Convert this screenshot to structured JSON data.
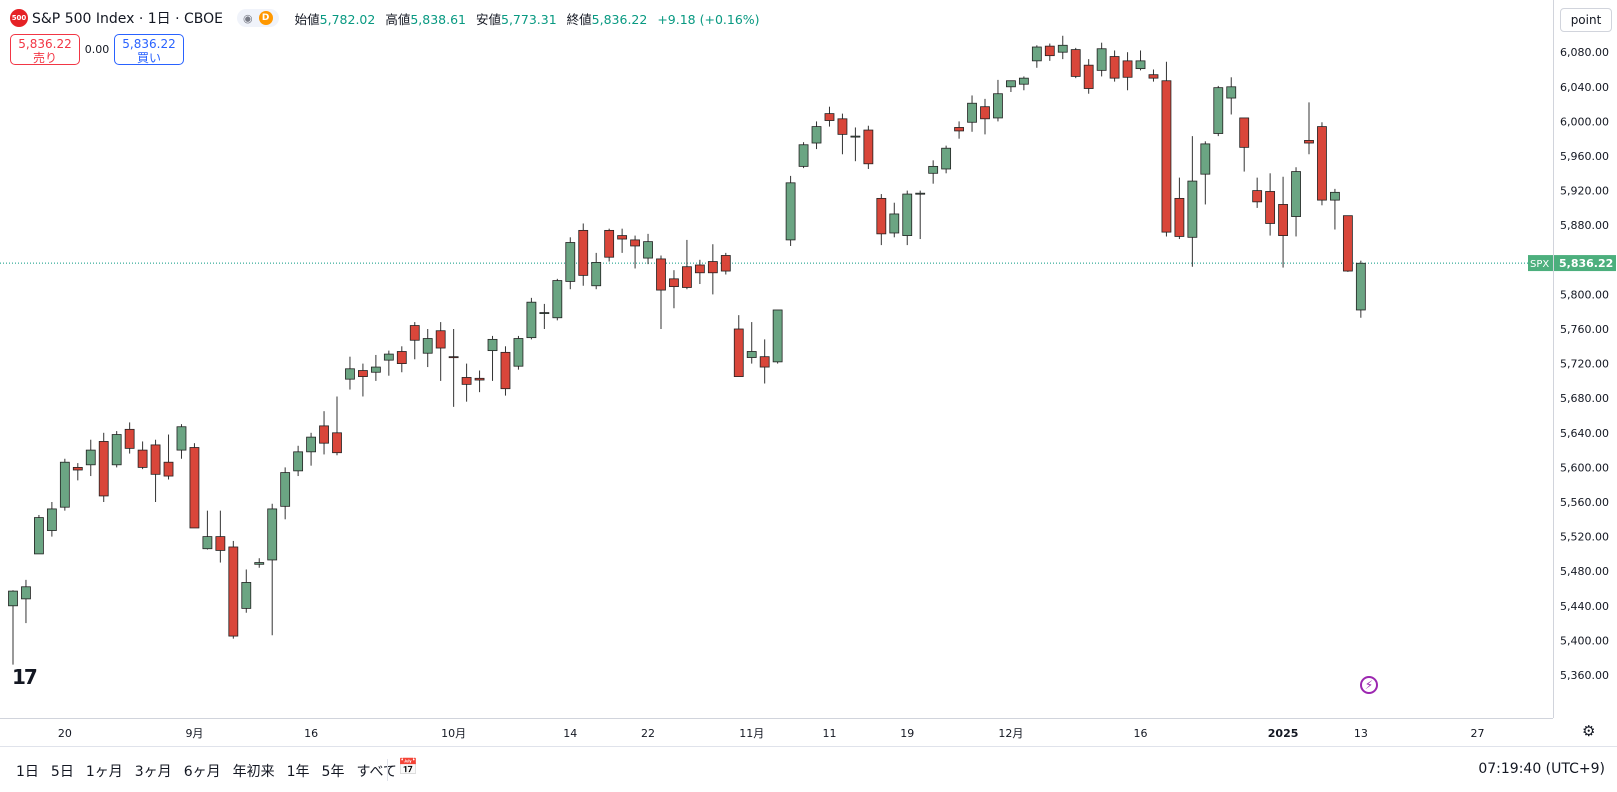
{
  "header": {
    "symbol_logo": "500",
    "title": "S&P 500 Index · 1日 · CBOE",
    "interval_badge": "D",
    "ohlc": {
      "open_label": "始値",
      "open": "5,782.02",
      "high_label": "高値",
      "high": "5,838.61",
      "low_label": "安値",
      "low": "5,773.31",
      "close_label": "終値",
      "close": "5,836.22",
      "change": "+9.18 (+0.16%)"
    }
  },
  "trade": {
    "sell_price": "5,836.22",
    "sell_label": "売り",
    "spread": "0.00",
    "buy_price": "5,836.22",
    "buy_label": "買い"
  },
  "price_scale_button": "point",
  "last_price_label": {
    "symbol": "SPX",
    "price": "5,836.22"
  },
  "bottom_bar": {
    "ranges": [
      "1日",
      "5日",
      "1ヶ月",
      "3ヶ月",
      "6ヶ月",
      "年初来",
      "1年",
      "5年",
      "すべて"
    ],
    "clock": "07:19:40 (UTC+9)"
  },
  "colors": {
    "up": "#6ba583",
    "down": "#d9463a",
    "wick": "#555555",
    "grid_last": "#089981"
  },
  "icons": [
    "eye-icon",
    "tradingview-logo-icon",
    "flash-icon",
    "calendar-icon",
    "gear-icon"
  ],
  "chart_data": {
    "type": "candlestick",
    "y_ticks": [
      5360,
      5400,
      5440,
      5480,
      5520,
      5560,
      5600,
      5640,
      5680,
      5720,
      5760,
      5800,
      5840,
      5880,
      5920,
      5960,
      6000,
      6040,
      6080
    ],
    "y_tick_labels": [
      "5,360.00",
      "5,400.00",
      "5,440.00",
      "5,480.00",
      "5,520.00",
      "5,560.00",
      "5,600.00",
      "5,640.00",
      "5,680.00",
      "5,720.00",
      "5,760.00",
      "5,800.00",
      "5,840.00",
      "5,880.00",
      "5,920.00",
      "5,960.00",
      "6,000.00",
      "6,040.00",
      "6,080.00"
    ],
    "x_tick_labels": [
      {
        "label": "20",
        "index": 4,
        "bold": false
      },
      {
        "label": "9月",
        "index": 14,
        "bold": false
      },
      {
        "label": "16",
        "index": 23,
        "bold": false
      },
      {
        "label": "10月",
        "index": 34,
        "bold": false
      },
      {
        "label": "14",
        "index": 43,
        "bold": false
      },
      {
        "label": "22",
        "index": 49,
        "bold": false
      },
      {
        "label": "11月",
        "index": 57,
        "bold": false
      },
      {
        "label": "11",
        "index": 63,
        "bold": false
      },
      {
        "label": "19",
        "index": 69,
        "bold": false
      },
      {
        "label": "12月",
        "index": 77,
        "bold": false
      },
      {
        "label": "16",
        "index": 87,
        "bold": false
      },
      {
        "label": "2025",
        "index": 98,
        "bold": true
      },
      {
        "label": "13",
        "index": 104,
        "bold": false
      },
      {
        "label": "27",
        "index": 113,
        "bold": false
      }
    ],
    "last_price": 5836.22,
    "candles": [
      {
        "o": 5440,
        "h": 5458,
        "l": 5372,
        "c": 5457
      },
      {
        "o": 5448,
        "h": 5470,
        "l": 5420,
        "c": 5462
      },
      {
        "o": 5500,
        "h": 5545,
        "l": 5500,
        "c": 5542
      },
      {
        "o": 5527,
        "h": 5560,
        "l": 5520,
        "c": 5552
      },
      {
        "o": 5554,
        "h": 5610,
        "l": 5550,
        "c": 5606
      },
      {
        "o": 5600,
        "h": 5605,
        "l": 5585,
        "c": 5597
      },
      {
        "o": 5603,
        "h": 5632,
        "l": 5590,
        "c": 5620
      },
      {
        "o": 5630,
        "h": 5640,
        "l": 5560,
        "c": 5567
      },
      {
        "o": 5603,
        "h": 5642,
        "l": 5600,
        "c": 5638
      },
      {
        "o": 5644,
        "h": 5652,
        "l": 5616,
        "c": 5622
      },
      {
        "o": 5620,
        "h": 5630,
        "l": 5598,
        "c": 5600
      },
      {
        "o": 5626,
        "h": 5632,
        "l": 5560,
        "c": 5592
      },
      {
        "o": 5606,
        "h": 5638,
        "l": 5586,
        "c": 5590
      },
      {
        "o": 5620,
        "h": 5650,
        "l": 5610,
        "c": 5647
      },
      {
        "o": 5623,
        "h": 5628,
        "l": 5530,
        "c": 5530
      },
      {
        "o": 5506,
        "h": 5550,
        "l": 5505,
        "c": 5520
      },
      {
        "o": 5520,
        "h": 5550,
        "l": 5490,
        "c": 5504
      },
      {
        "o": 5508,
        "h": 5515,
        "l": 5402,
        "c": 5405
      },
      {
        "o": 5437,
        "h": 5482,
        "l": 5432,
        "c": 5467
      },
      {
        "o": 5488,
        "h": 5495,
        "l": 5484,
        "c": 5490
      },
      {
        "o": 5493,
        "h": 5558,
        "l": 5406,
        "c": 5552
      },
      {
        "o": 5555,
        "h": 5600,
        "l": 5540,
        "c": 5594
      },
      {
        "o": 5596,
        "h": 5625,
        "l": 5590,
        "c": 5618
      },
      {
        "o": 5618,
        "h": 5640,
        "l": 5602,
        "c": 5635
      },
      {
        "o": 5648,
        "h": 5665,
        "l": 5615,
        "c": 5628
      },
      {
        "o": 5640,
        "h": 5682,
        "l": 5614,
        "c": 5617
      },
      {
        "o": 5702,
        "h": 5728,
        "l": 5690,
        "c": 5714
      },
      {
        "o": 5712,
        "h": 5720,
        "l": 5682,
        "c": 5705
      },
      {
        "o": 5710,
        "h": 5730,
        "l": 5700,
        "c": 5716
      },
      {
        "o": 5724,
        "h": 5735,
        "l": 5706,
        "c": 5731
      },
      {
        "o": 5734,
        "h": 5740,
        "l": 5710,
        "c": 5720
      },
      {
        "o": 5764,
        "h": 5768,
        "l": 5725,
        "c": 5747
      },
      {
        "o": 5732,
        "h": 5760,
        "l": 5716,
        "c": 5749
      },
      {
        "o": 5758,
        "h": 5768,
        "l": 5700,
        "c": 5738
      },
      {
        "o": 5728,
        "h": 5760,
        "l": 5670,
        "c": 5727
      },
      {
        "o": 5704,
        "h": 5720,
        "l": 5676,
        "c": 5696
      },
      {
        "o": 5703,
        "h": 5712,
        "l": 5687,
        "c": 5701
      },
      {
        "o": 5735,
        "h": 5752,
        "l": 5700,
        "c": 5748
      },
      {
        "o": 5733,
        "h": 5740,
        "l": 5683,
        "c": 5691
      },
      {
        "o": 5717,
        "h": 5752,
        "l": 5713,
        "c": 5749
      },
      {
        "o": 5750,
        "h": 5796,
        "l": 5748,
        "c": 5791
      },
      {
        "o": 5778,
        "h": 5789,
        "l": 5760,
        "c": 5779
      },
      {
        "o": 5773,
        "h": 5818,
        "l": 5770,
        "c": 5816
      },
      {
        "o": 5815,
        "h": 5866,
        "l": 5806,
        "c": 5860
      },
      {
        "o": 5874,
        "h": 5882,
        "l": 5810,
        "c": 5822
      },
      {
        "o": 5810,
        "h": 5848,
        "l": 5806,
        "c": 5837
      },
      {
        "o": 5874,
        "h": 5876,
        "l": 5838,
        "c": 5843
      },
      {
        "o": 5868,
        "h": 5876,
        "l": 5848,
        "c": 5864
      },
      {
        "o": 5863,
        "h": 5868,
        "l": 5830,
        "c": 5856
      },
      {
        "o": 5842,
        "h": 5870,
        "l": 5835,
        "c": 5861
      },
      {
        "o": 5841,
        "h": 5845,
        "l": 5760,
        "c": 5805
      },
      {
        "o": 5818,
        "h": 5828,
        "l": 5784,
        "c": 5809
      },
      {
        "o": 5832,
        "h": 5863,
        "l": 5806,
        "c": 5808
      },
      {
        "o": 5834,
        "h": 5840,
        "l": 5812,
        "c": 5825
      },
      {
        "o": 5838,
        "h": 5858,
        "l": 5800,
        "c": 5825
      },
      {
        "o": 5845,
        "h": 5848,
        "l": 5823,
        "c": 5827
      },
      {
        "o": 5760,
        "h": 5776,
        "l": 5705,
        "c": 5705
      },
      {
        "o": 5727,
        "h": 5768,
        "l": 5720,
        "c": 5734
      },
      {
        "o": 5728,
        "h": 5748,
        "l": 5697,
        "c": 5716
      },
      {
        "o": 5722,
        "h": 5782,
        "l": 5720,
        "c": 5782
      },
      {
        "o": 5863,
        "h": 5937,
        "l": 5856,
        "c": 5929
      },
      {
        "o": 5948,
        "h": 5976,
        "l": 5946,
        "c": 5973
      },
      {
        "o": 5975,
        "h": 6000,
        "l": 5968,
        "c": 5994
      },
      {
        "o": 6009,
        "h": 6017,
        "l": 5994,
        "c": 6001
      },
      {
        "o": 6003,
        "h": 6009,
        "l": 5962,
        "c": 5985
      },
      {
        "o": 5983,
        "h": 5993,
        "l": 5954,
        "c": 5983
      },
      {
        "o": 5990,
        "h": 5995,
        "l": 5945,
        "c": 5951
      },
      {
        "o": 5911,
        "h": 5916,
        "l": 5857,
        "c": 5870
      },
      {
        "o": 5871,
        "h": 5906,
        "l": 5866,
        "c": 5893
      },
      {
        "o": 5868,
        "h": 5920,
        "l": 5857,
        "c": 5916
      },
      {
        "o": 5916,
        "h": 5920,
        "l": 5864,
        "c": 5917
      },
      {
        "o": 5940,
        "h": 5955,
        "l": 5928,
        "c": 5948
      },
      {
        "o": 5945,
        "h": 5972,
        "l": 5940,
        "c": 5969
      },
      {
        "o": 5993,
        "h": 6000,
        "l": 5980,
        "c": 5989
      },
      {
        "o": 5999,
        "h": 6030,
        "l": 5988,
        "c": 6021
      },
      {
        "o": 6017,
        "h": 6026,
        "l": 5985,
        "c": 6003
      },
      {
        "o": 6004,
        "h": 6048,
        "l": 6000,
        "c": 6032
      },
      {
        "o": 6040,
        "h": 6046,
        "l": 6034,
        "c": 6047
      },
      {
        "o": 6043,
        "h": 6052,
        "l": 6036,
        "c": 6050
      },
      {
        "o": 6070,
        "h": 6088,
        "l": 6062,
        "c": 6086
      },
      {
        "o": 6087,
        "h": 6090,
        "l": 6070,
        "c": 6076
      },
      {
        "o": 6080,
        "h": 6099,
        "l": 6072,
        "c": 6088
      },
      {
        "o": 6083,
        "h": 6085,
        "l": 6050,
        "c": 6052
      },
      {
        "o": 6065,
        "h": 6072,
        "l": 6032,
        "c": 6038
      },
      {
        "o": 6059,
        "h": 6091,
        "l": 6052,
        "c": 6084
      },
      {
        "o": 6075,
        "h": 6082,
        "l": 6046,
        "c": 6050
      },
      {
        "o": 6070,
        "h": 6080,
        "l": 6036,
        "c": 6051
      },
      {
        "o": 6061,
        "h": 6082,
        "l": 6059,
        "c": 6070
      },
      {
        "o": 6054,
        "h": 6060,
        "l": 6046,
        "c": 6050
      },
      {
        "o": 6047,
        "h": 6069,
        "l": 5867,
        "c": 5872
      },
      {
        "o": 5911,
        "h": 5935,
        "l": 5864,
        "c": 5867
      },
      {
        "o": 5866,
        "h": 5983,
        "l": 5832,
        "c": 5931
      },
      {
        "o": 5939,
        "h": 5977,
        "l": 5904,
        "c": 5974
      },
      {
        "o": 5986,
        "h": 6041,
        "l": 5983,
        "c": 6039
      },
      {
        "o": 6027,
        "h": 6051,
        "l": 6008,
        "c": 6040
      },
      {
        "o": 6004,
        "h": 6004,
        "l": 5942,
        "c": 5970
      },
      {
        "o": 5920,
        "h": 5935,
        "l": 5900,
        "c": 5907
      },
      {
        "o": 5919,
        "h": 5940,
        "l": 5868,
        "c": 5882
      },
      {
        "o": 5904,
        "h": 5936,
        "l": 5831,
        "c": 5868
      },
      {
        "o": 5890,
        "h": 5947,
        "l": 5867,
        "c": 5942
      },
      {
        "o": 5978,
        "h": 6022,
        "l": 5962,
        "c": 5975
      },
      {
        "o": 5994,
        "h": 5999,
        "l": 5903,
        "c": 5909
      },
      {
        "o": 5909,
        "h": 5922,
        "l": 5875,
        "c": 5918
      },
      {
        "o": 5891,
        "h": 5891,
        "l": 5826,
        "c": 5827
      },
      {
        "o": 5782,
        "h": 5839,
        "l": 5773,
        "c": 5836
      }
    ]
  }
}
